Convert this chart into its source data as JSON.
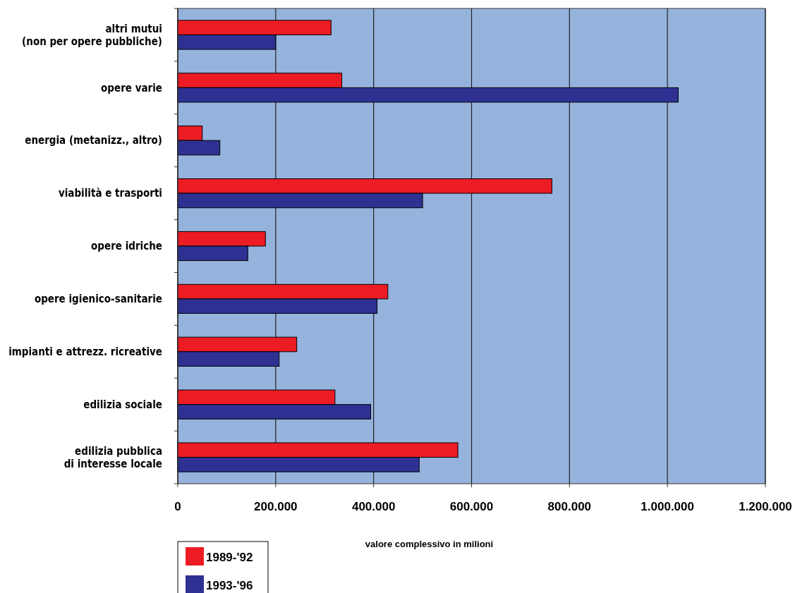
{
  "chart_data": {
    "type": "bar",
    "orientation": "horizontal",
    "xlabel": "valore complessivo in milioni",
    "categories": [
      "altri mutui\n(non per opere pubbliche)",
      "opere varie",
      "energia (metanizz., altro)",
      "viabilità e trasporti",
      "opere idriche",
      "opere igienico-sanitarie",
      "impianti e attrezz. ricreative",
      "edilizia sociale",
      "edilizia pubblica\ndi interesse locale"
    ],
    "series": [
      {
        "name": "1989-'92",
        "color": "#ed1c24",
        "values": [
          313000,
          335000,
          50000,
          764000,
          179000,
          429000,
          243000,
          321000,
          572000
        ]
      },
      {
        "name": "1993-'96",
        "color": "#2e3192",
        "values": [
          200000,
          1022000,
          86000,
          500000,
          143000,
          407000,
          207000,
          394000,
          493000
        ]
      }
    ],
    "xlim": [
      0,
      1200000
    ],
    "xticks": [
      0,
      {
        "value": 200000,
        "label": "200.000"
      },
      {
        "value": 400000,
        "label": "400.000"
      },
      {
        "value": 600000,
        "label": "600.000"
      },
      {
        "value": 800000,
        "label": "800.000"
      },
      {
        "value": 1000000,
        "label": "1.000.000"
      },
      {
        "value": 1200000,
        "label": "1.200.000"
      }
    ],
    "grid": "x",
    "legend": "bottom left"
  }
}
